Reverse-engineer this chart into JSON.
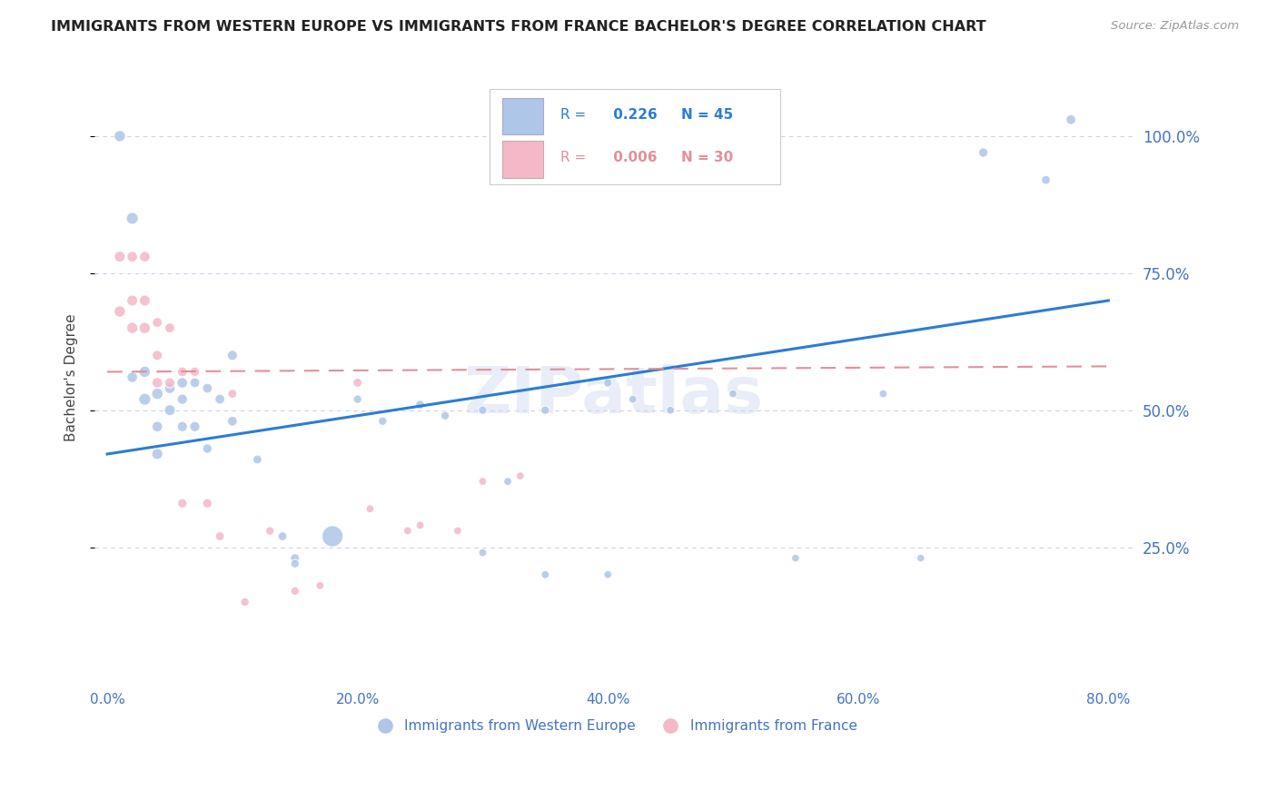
{
  "title": "IMMIGRANTS FROM WESTERN EUROPE VS IMMIGRANTS FROM FRANCE BACHELOR'S DEGREE CORRELATION CHART",
  "source": "Source: ZipAtlas.com",
  "ylabel": "Bachelor's Degree",
  "x_tick_labels": [
    "0.0%",
    "20.0%",
    "40.0%",
    "60.0%",
    "80.0%"
  ],
  "x_tick_vals": [
    0,
    20,
    40,
    60,
    80
  ],
  "y_tick_labels": [
    "100.0%",
    "75.0%",
    "50.0%",
    "25.0%"
  ],
  "y_tick_vals": [
    100,
    75,
    50,
    25
  ],
  "xlim": [
    -1,
    82
  ],
  "ylim": [
    0,
    112
  ],
  "blue_R": 0.226,
  "blue_N": 45,
  "pink_R": 0.006,
  "pink_N": 30,
  "blue_color": "#aec6e8",
  "pink_color": "#f4b8c8",
  "blue_line_color": "#2b7dd4",
  "pink_line_color": "#e0909c",
  "blue_label": "Immigrants from Western Europe",
  "pink_label": "Immigrants from France",
  "watermark": "ZIPatlas",
  "background_color": "#ffffff",
  "grid_color": "#c8d4e8",
  "axis_color": "#4472c4",
  "title_color": "#222222",
  "blue_x": [
    1,
    2,
    2,
    3,
    3,
    4,
    4,
    4,
    5,
    5,
    6,
    6,
    6,
    7,
    7,
    8,
    8,
    9,
    10,
    10,
    12,
    14,
    15,
    15,
    18,
    20,
    22,
    25,
    27,
    30,
    30,
    32,
    35,
    35,
    40,
    40,
    42,
    45,
    50,
    55,
    62,
    65,
    70,
    75,
    77
  ],
  "blue_y": [
    100,
    85,
    56,
    52,
    57,
    53,
    47,
    42,
    54,
    50,
    55,
    52,
    47,
    55,
    47,
    54,
    43,
    52,
    60,
    48,
    41,
    27,
    23,
    22,
    27,
    52,
    48,
    51,
    49,
    24,
    50,
    37,
    50,
    20,
    55,
    20,
    52,
    50,
    53,
    23,
    53,
    23,
    97,
    92,
    103
  ],
  "blue_sizes": [
    80,
    90,
    70,
    90,
    80,
    80,
    70,
    75,
    70,
    75,
    70,
    65,
    65,
    60,
    65,
    60,
    55,
    60,
    65,
    60,
    50,
    50,
    50,
    45,
    280,
    45,
    45,
    50,
    45,
    40,
    45,
    40,
    45,
    40,
    45,
    40,
    40,
    40,
    40,
    38,
    40,
    38,
    55,
    50,
    60
  ],
  "pink_x": [
    1,
    1,
    2,
    2,
    2,
    3,
    3,
    3,
    4,
    4,
    4,
    5,
    5,
    6,
    6,
    7,
    8,
    9,
    10,
    11,
    13,
    15,
    17,
    20,
    21,
    24,
    25,
    28,
    30,
    33
  ],
  "pink_y": [
    68,
    78,
    65,
    70,
    78,
    65,
    70,
    78,
    55,
    60,
    66,
    55,
    65,
    33,
    57,
    57,
    33,
    27,
    53,
    15,
    28,
    17,
    18,
    55,
    32,
    28,
    29,
    28,
    37,
    38
  ],
  "pink_sizes": [
    80,
    75,
    80,
    75,
    70,
    80,
    75,
    70,
    70,
    65,
    60,
    65,
    60,
    55,
    60,
    55,
    55,
    50,
    50,
    45,
    45,
    45,
    40,
    50,
    40,
    40,
    40,
    40,
    40,
    40
  ],
  "blue_trend_x": [
    0,
    80
  ],
  "blue_trend_y": [
    42,
    70
  ],
  "pink_trend_x": [
    0,
    80
  ],
  "pink_trend_y": [
    57,
    58
  ],
  "legend_blue_text": "R = 0.226  N = 45",
  "legend_pink_text": "R = 0.006  N = 30"
}
